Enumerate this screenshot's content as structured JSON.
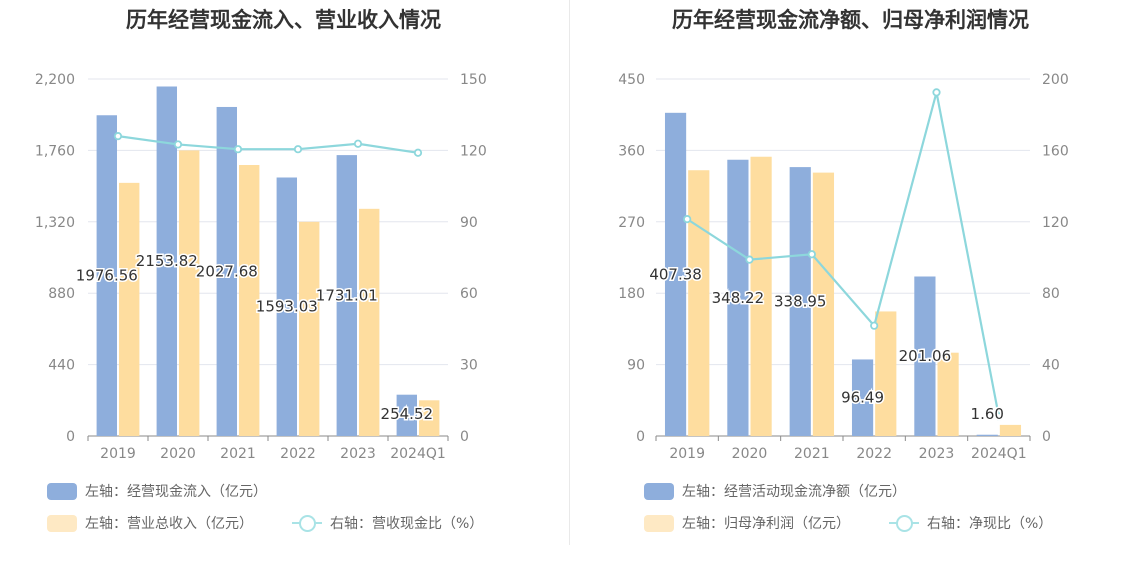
{
  "chart_data": [
    {
      "type": "bar",
      "title": "历年经营现金流入、营业收入情况",
      "categories": [
        "2019",
        "2020",
        "2021",
        "2022",
        "2023",
        "2024Q1"
      ],
      "left_axis": {
        "ticks": [
          "0",
          "440",
          "880",
          "1,320",
          "1,760",
          "2,200"
        ],
        "ylim": [
          0,
          2200
        ]
      },
      "right_axis": {
        "ticks": [
          "0",
          "30",
          "60",
          "90",
          "120",
          "150"
        ],
        "ylim": [
          0,
          150
        ]
      },
      "series": [
        {
          "name": "左轴：经营现金流入（亿元）",
          "kind": "bar",
          "axis": "left",
          "color": "#8eaedc",
          "values": [
            1976.56,
            2153.82,
            2027.68,
            1593.03,
            1731.01,
            254.52
          ],
          "labels": [
            "1976.56",
            "2153.82",
            "2027.68",
            "1593.03",
            "1731.01",
            "254.52"
          ]
        },
        {
          "name": "左轴：营业总收入（亿元）",
          "kind": "bar",
          "axis": "left",
          "color": "#fedd9f",
          "values": [
            1560,
            1760,
            1670,
            1320,
            1400,
            220
          ]
        },
        {
          "name": "右轴：营收现金比（%）",
          "kind": "line",
          "axis": "right",
          "color": "#8dd7dc",
          "values": [
            126,
            122.5,
            120.5,
            120.5,
            122.8,
            119
          ]
        }
      ]
    },
    {
      "type": "bar",
      "title": "历年经营现金流净额、归母净利润情况",
      "categories": [
        "2019",
        "2020",
        "2021",
        "2022",
        "2023",
        "2024Q1"
      ],
      "left_axis": {
        "ticks": [
          "0",
          "90",
          "180",
          "270",
          "360",
          "450"
        ],
        "ylim": [
          0,
          450
        ]
      },
      "right_axis": {
        "ticks": [
          "0",
          "40",
          "80",
          "120",
          "160",
          "200"
        ],
        "ylim": [
          0,
          200
        ]
      },
      "series": [
        {
          "name": "左轴：经营活动现金流净额（亿元）",
          "kind": "bar",
          "axis": "left",
          "color": "#8eaedc",
          "values": [
            407.38,
            348.22,
            338.95,
            96.49,
            201.06,
            1.6
          ],
          "labels": [
            "407.38",
            "348.22",
            "338.95",
            "96.49",
            "201.06",
            "1.60"
          ]
        },
        {
          "name": "左轴：归母净利润（亿元）",
          "kind": "bar",
          "axis": "left",
          "color": "#fedd9f",
          "values": [
            335,
            352,
            332,
            157,
            105,
            14
          ]
        },
        {
          "name": "右轴：净现比（%）",
          "kind": "line",
          "axis": "right",
          "color": "#8dd7dc",
          "values": [
            121.5,
            98.8,
            101.8,
            61.8,
            192.5,
            11
          ]
        }
      ]
    }
  ]
}
